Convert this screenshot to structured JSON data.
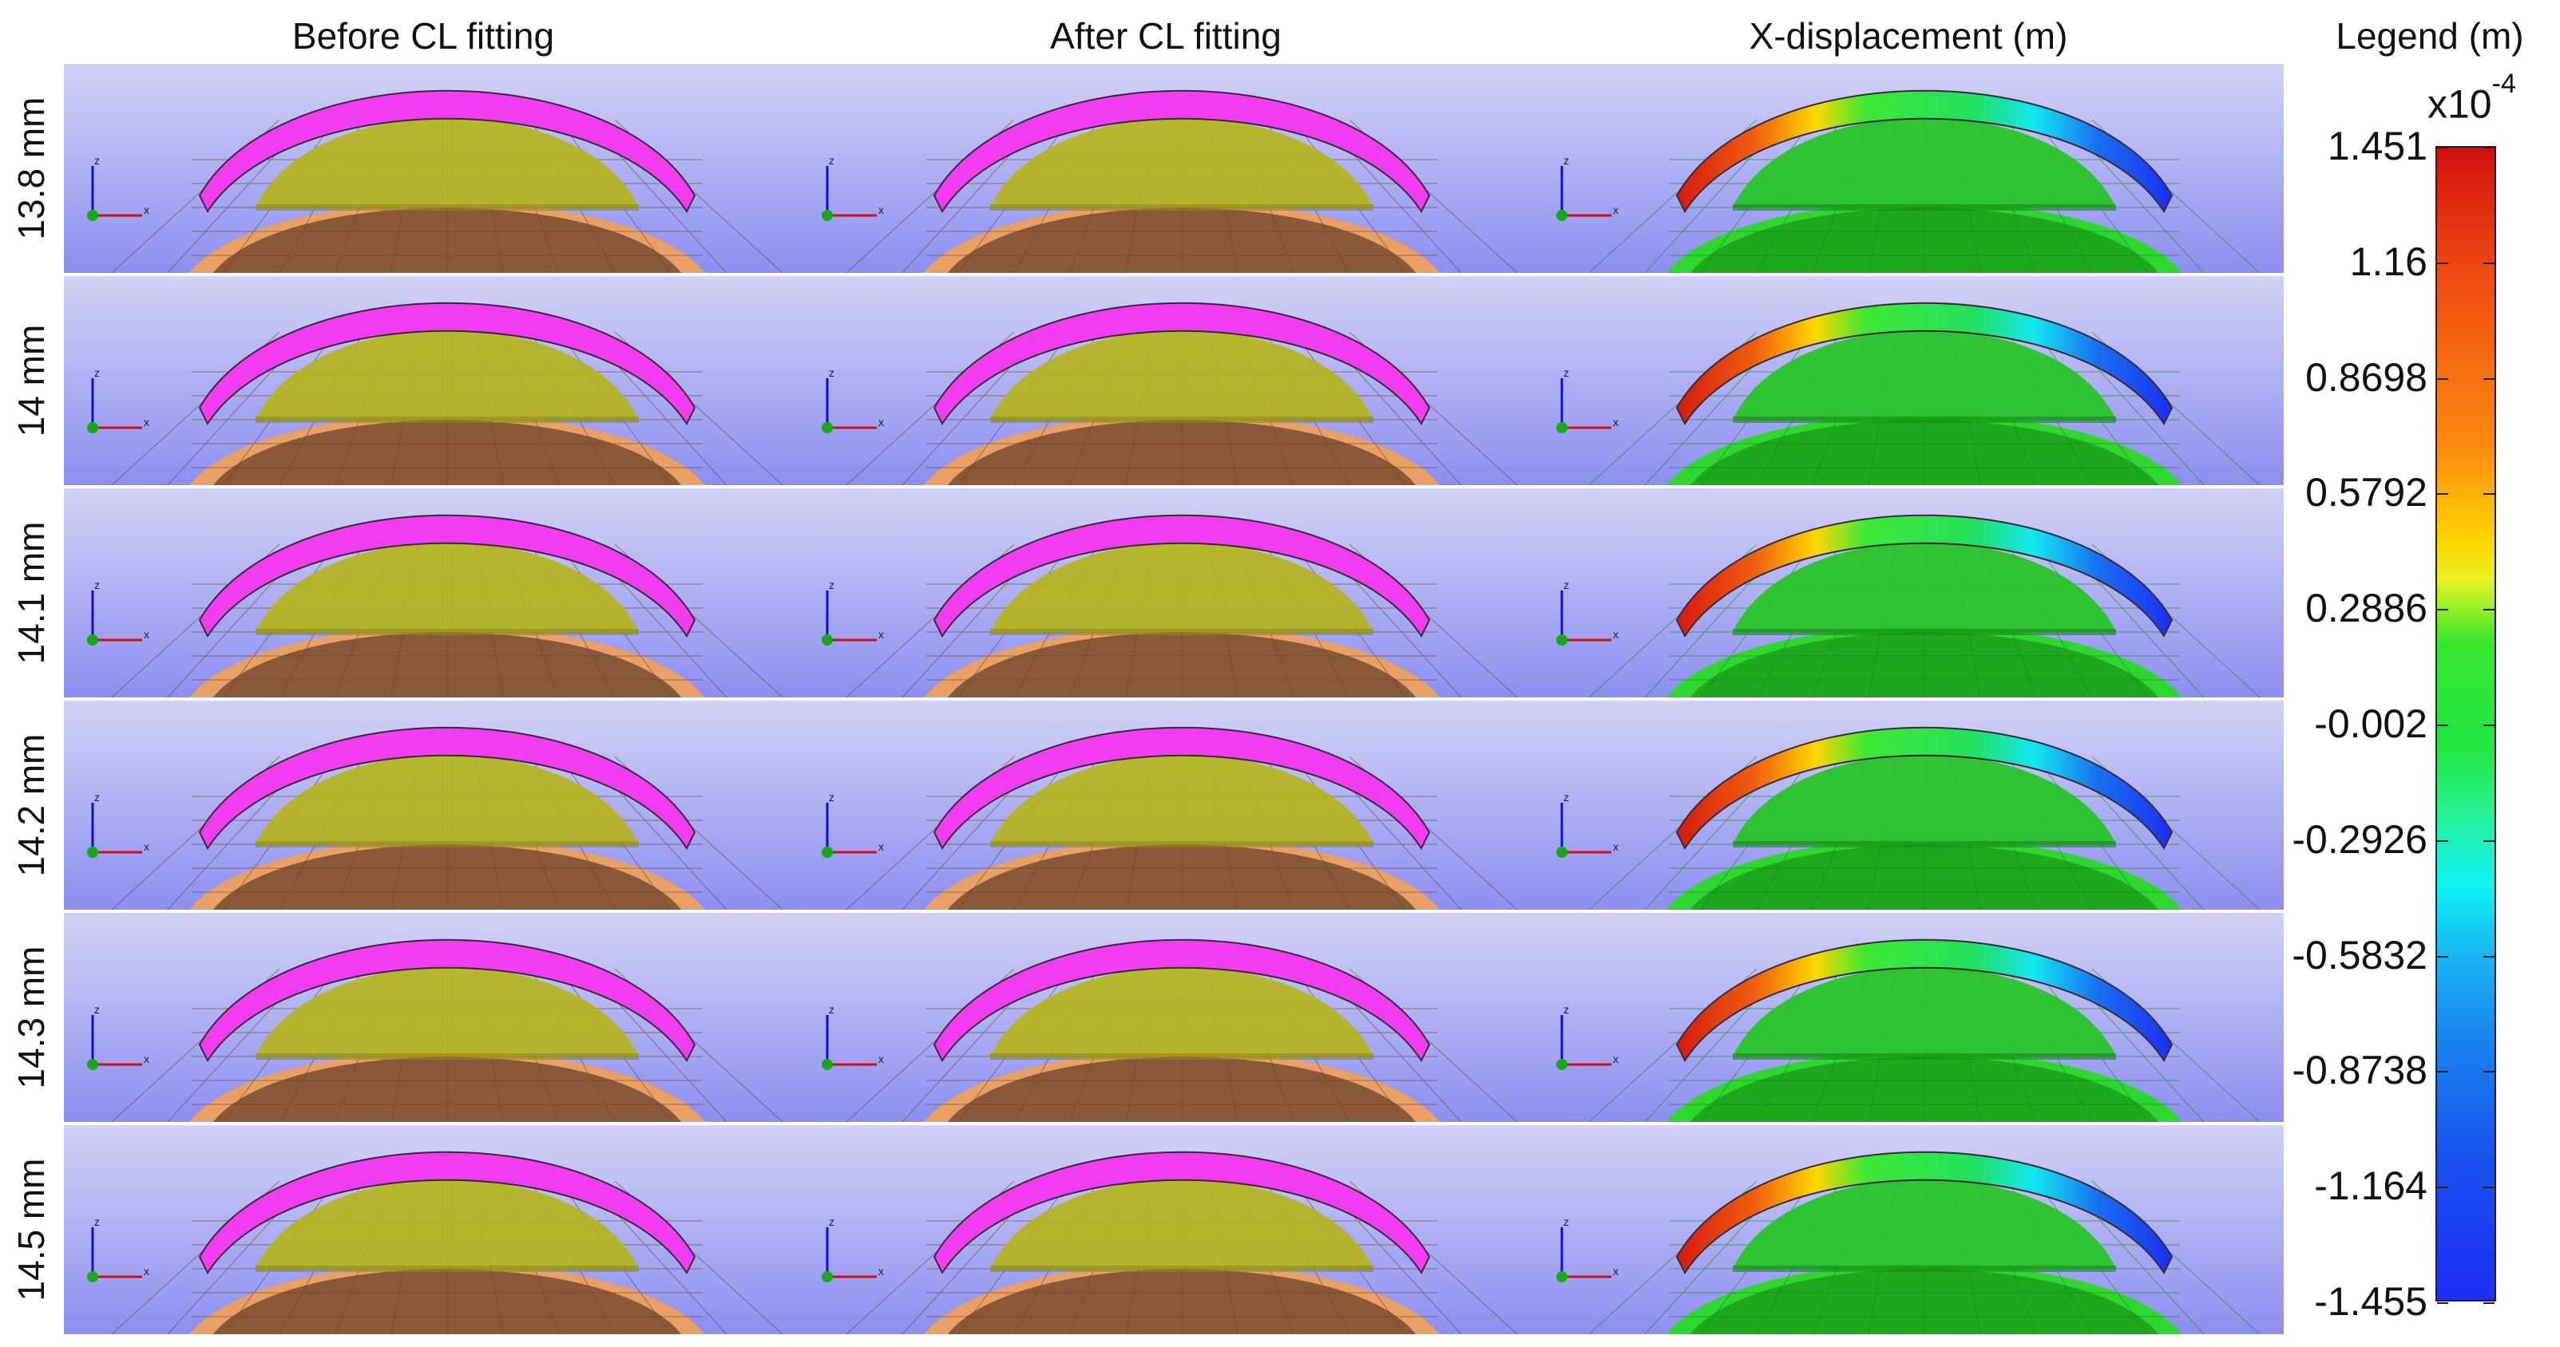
{
  "column_headers": [
    "Before CL fitting",
    "After CL fitting",
    "X-displacement (m)"
  ],
  "row_labels": [
    "13.8 mm",
    "14 mm",
    "14.1 mm",
    "14.2 mm",
    "14.3 mm",
    "14.5 mm"
  ],
  "axis_triad": {
    "z": "z",
    "x": "x"
  },
  "legend": {
    "title": "Legend (m)",
    "multiplier_base": "x10",
    "multiplier_exponent": "-4",
    "ticks": [
      "1.451",
      "1.16",
      "0.8698",
      "0.5792",
      "0.2886",
      "-0.002",
      "-0.2926",
      "-0.5832",
      "-0.8738",
      "-1.164",
      "-1.455"
    ],
    "range": [
      -1.455,
      1.451
    ],
    "colormap": [
      "#1e2ef6",
      "#1980f0",
      "#10f4f4",
      "#22e640",
      "#e9f320",
      "#ffd400",
      "#fb8a10",
      "#d01010"
    ]
  },
  "colors": {
    "background_top": "#d2d2f6",
    "background_bottom": "#8c8ef0",
    "contact_lens": "#f23cf2",
    "cornea": "#b4b41e",
    "sclera": "#e9a066",
    "iris_region": "#8a5a38",
    "displacement_base": "#22d022"
  }
}
